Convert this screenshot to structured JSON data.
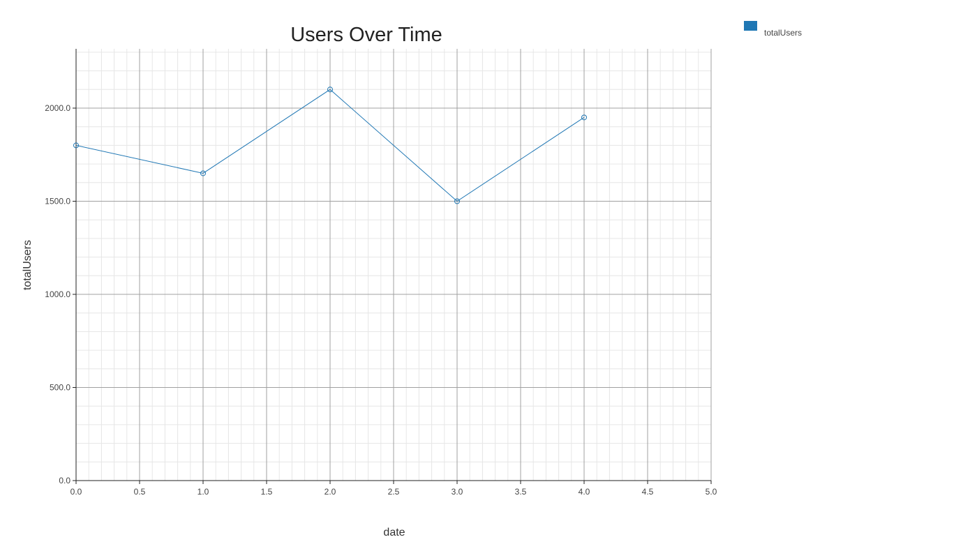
{
  "chart_data": {
    "type": "line",
    "title": "Users Over Time",
    "xlabel": "date",
    "ylabel": "totalUsers",
    "xlim": [
      0,
      5
    ],
    "ylim": [
      0,
      2300
    ],
    "x_ticks": [
      0,
      0.5,
      1,
      1.5,
      2,
      2.5,
      3,
      3.5,
      4,
      4.5,
      5
    ],
    "x_tick_labels": [
      "0.0",
      "0.5",
      "1.0",
      "1.5",
      "2.0",
      "2.5",
      "3.0",
      "3.5",
      "4.0",
      "4.5",
      "5.0"
    ],
    "y_ticks": [
      0,
      500,
      1000,
      1500,
      2000
    ],
    "y_tick_labels": [
      "0.0",
      "500.0",
      "1000.0",
      "1500.0",
      "2000.0"
    ],
    "grid": true,
    "legend_position": "top-right-outside",
    "series": [
      {
        "name": "totalUsers",
        "color": "#1f77b4",
        "x": [
          0,
          1,
          2,
          3,
          4
        ],
        "y": [
          1800,
          1650,
          2100,
          1500,
          1950
        ]
      }
    ]
  }
}
